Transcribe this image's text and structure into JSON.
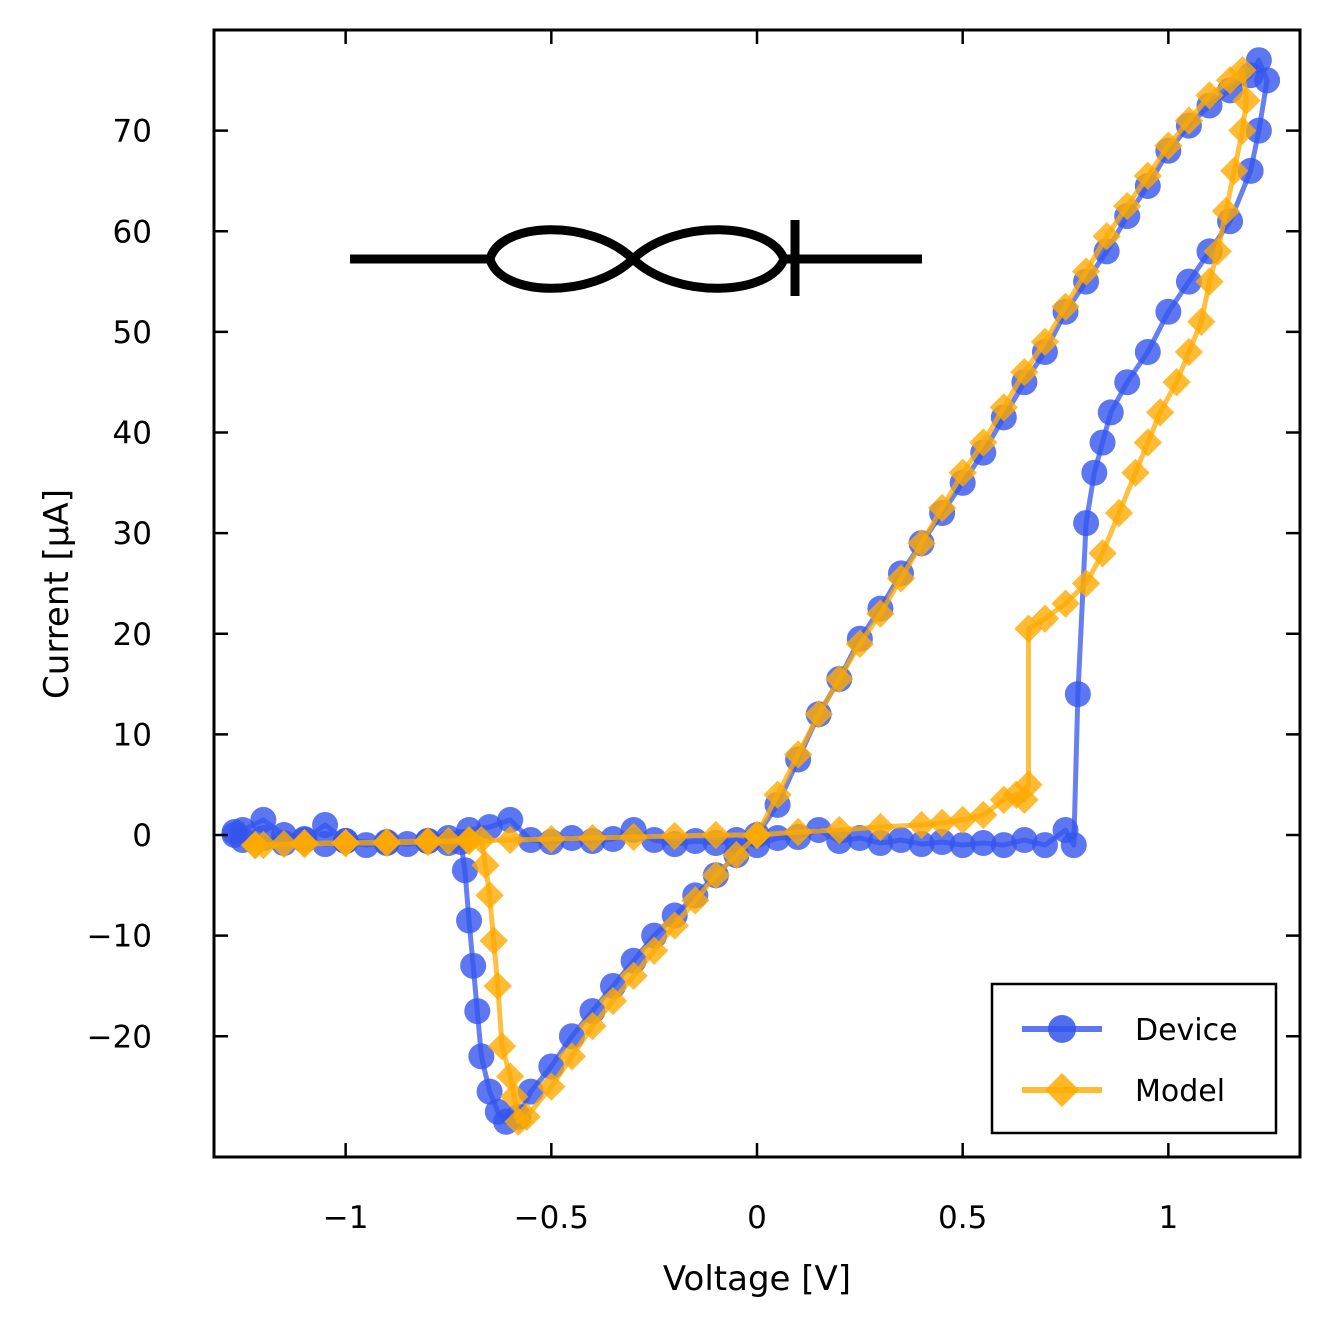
{
  "chart_data": {
    "type": "line",
    "title": "",
    "xlabel": "Voltage [V]",
    "ylabel": "Current [μA]",
    "xlim": [
      -1.32,
      1.32
    ],
    "ylim": [
      -32,
      80
    ],
    "xticks": [
      -1,
      -0.5,
      0,
      0.5,
      1
    ],
    "xtick_labels": [
      "−1",
      "−0.5",
      "0",
      "0.5",
      "1"
    ],
    "yticks": [
      -20,
      -10,
      0,
      10,
      20,
      30,
      40,
      50,
      60,
      70
    ],
    "ytick_labels": [
      "−20",
      "−10",
      "0",
      "10",
      "20",
      "30",
      "40",
      "50",
      "60",
      "70"
    ],
    "grid": false,
    "legend_position": "bottom-right",
    "inset_symbol": "memristor",
    "series": [
      {
        "name": "Device",
        "color": "#3355ee",
        "marker": "circle",
        "points": [
          [
            -1.27,
            0.0
          ],
          [
            -1.25,
            -0.5
          ],
          [
            -1.2,
            -0.3
          ],
          [
            -1.15,
            -0.8
          ],
          [
            -1.1,
            -0.4
          ],
          [
            -1.05,
            -0.9
          ],
          [
            -1.0,
            -0.6
          ],
          [
            -0.95,
            -1.0
          ],
          [
            -0.9,
            -0.7
          ],
          [
            -0.85,
            -0.9
          ],
          [
            -0.8,
            -0.6
          ],
          [
            -0.75,
            -0.8
          ],
          [
            -0.72,
            -0.7
          ],
          [
            -0.71,
            -3.5
          ],
          [
            -0.7,
            -8.5
          ],
          [
            -0.69,
            -13.0
          ],
          [
            -0.68,
            -17.5
          ],
          [
            -0.67,
            -22.0
          ],
          [
            -0.65,
            -25.5
          ],
          [
            -0.63,
            -27.5
          ],
          [
            -0.61,
            -28.5
          ],
          [
            -0.58,
            -28.0
          ],
          [
            -0.55,
            -25.5
          ],
          [
            -0.5,
            -23.0
          ],
          [
            -0.45,
            -20.0
          ],
          [
            -0.4,
            -17.5
          ],
          [
            -0.35,
            -15.0
          ],
          [
            -0.3,
            -12.5
          ],
          [
            -0.25,
            -10.0
          ],
          [
            -0.2,
            -8.0
          ],
          [
            -0.15,
            -6.0
          ],
          [
            -0.1,
            -4.0
          ],
          [
            -0.05,
            -2.0
          ],
          [
            0.0,
            0.0
          ],
          [
            0.05,
            3.0
          ],
          [
            0.1,
            7.5
          ],
          [
            0.15,
            12.0
          ],
          [
            0.2,
            15.5
          ],
          [
            0.25,
            19.5
          ],
          [
            0.3,
            22.5
          ],
          [
            0.35,
            26.0
          ],
          [
            0.4,
            29.0
          ],
          [
            0.45,
            32.0
          ],
          [
            0.5,
            35.0
          ],
          [
            0.55,
            38.0
          ],
          [
            0.6,
            41.5
          ],
          [
            0.65,
            45.0
          ],
          [
            0.7,
            48.0
          ],
          [
            0.75,
            52.0
          ],
          [
            0.8,
            55.0
          ],
          [
            0.85,
            58.0
          ],
          [
            0.9,
            61.5
          ],
          [
            0.95,
            64.5
          ],
          [
            1.0,
            68.0
          ],
          [
            1.05,
            70.5
          ],
          [
            1.1,
            72.5
          ],
          [
            1.15,
            74.0
          ],
          [
            1.2,
            75.5
          ],
          [
            1.22,
            77.0
          ],
          [
            1.24,
            75.0
          ],
          [
            1.22,
            70.0
          ],
          [
            1.2,
            66.0
          ],
          [
            1.15,
            61.0
          ],
          [
            1.1,
            58.0
          ],
          [
            1.05,
            55.0
          ],
          [
            1.0,
            52.0
          ],
          [
            0.95,
            48.0
          ],
          [
            0.9,
            45.0
          ],
          [
            0.86,
            42.0
          ],
          [
            0.84,
            39.0
          ],
          [
            0.82,
            36.0
          ],
          [
            0.8,
            31.0
          ],
          [
            0.78,
            14.0
          ],
          [
            0.77,
            -1.0
          ],
          [
            0.75,
            0.5
          ],
          [
            0.7,
            -1.0
          ],
          [
            0.65,
            -0.5
          ],
          [
            0.6,
            -1.0
          ],
          [
            0.55,
            -0.8
          ],
          [
            0.5,
            -1.0
          ],
          [
            0.45,
            -0.7
          ],
          [
            0.4,
            -0.9
          ],
          [
            0.35,
            -0.5
          ],
          [
            0.3,
            -0.8
          ],
          [
            0.25,
            -0.3
          ],
          [
            0.2,
            -0.6
          ],
          [
            0.15,
            0.5
          ],
          [
            0.1,
            -0.2
          ],
          [
            0.05,
            -0.3
          ],
          [
            0.0,
            -1.0
          ],
          [
            -0.05,
            -0.5
          ],
          [
            -0.1,
            -0.8
          ],
          [
            -0.15,
            -0.6
          ],
          [
            -0.2,
            -0.9
          ],
          [
            -0.25,
            -0.5
          ],
          [
            -0.3,
            0.5
          ],
          [
            -0.35,
            -0.4
          ],
          [
            -0.4,
            -0.6
          ],
          [
            -0.45,
            -0.3
          ],
          [
            -0.5,
            -0.7
          ],
          [
            -0.55,
            -0.5
          ],
          [
            -0.6,
            1.5
          ],
          [
            -0.65,
            0.8
          ],
          [
            -0.7,
            0.5
          ],
          [
            -0.75,
            -0.3
          ],
          [
            -0.8,
            -0.6
          ],
          [
            -0.9,
            -0.8
          ],
          [
            -1.0,
            -0.6
          ],
          [
            -1.05,
            1.0
          ],
          [
            -1.1,
            -0.5
          ],
          [
            -1.15,
            0.0
          ],
          [
            -1.2,
            1.5
          ],
          [
            -1.25,
            0.5
          ],
          [
            -1.27,
            0.3
          ]
        ]
      },
      {
        "name": "Model",
        "color": "#ffaa00",
        "marker": "diamond",
        "points": [
          [
            -1.22,
            -1.0
          ],
          [
            -1.15,
            -0.9
          ],
          [
            -1.1,
            -0.8
          ],
          [
            -1.0,
            -0.8
          ],
          [
            -0.9,
            -0.7
          ],
          [
            -0.8,
            -0.6
          ],
          [
            -0.75,
            -0.6
          ],
          [
            -0.7,
            -0.5
          ],
          [
            -0.67,
            -0.5
          ],
          [
            -0.66,
            -3.0
          ],
          [
            -0.65,
            -6.0
          ],
          [
            -0.64,
            -10.5
          ],
          [
            -0.63,
            -15.0
          ],
          [
            -0.62,
            -21.0
          ],
          [
            -0.6,
            -24.0
          ],
          [
            -0.59,
            -26.0
          ],
          [
            -0.58,
            -28.5
          ],
          [
            -0.56,
            -28.0
          ],
          [
            -0.5,
            -25.0
          ],
          [
            -0.45,
            -22.0
          ],
          [
            -0.4,
            -19.0
          ],
          [
            -0.35,
            -16.5
          ],
          [
            -0.3,
            -14.0
          ],
          [
            -0.25,
            -11.5
          ],
          [
            -0.2,
            -9.0
          ],
          [
            -0.15,
            -6.5
          ],
          [
            -0.1,
            -4.0
          ],
          [
            -0.05,
            -2.0
          ],
          [
            0.0,
            0.0
          ],
          [
            0.05,
            4.0
          ],
          [
            0.1,
            8.0
          ],
          [
            0.15,
            12.0
          ],
          [
            0.2,
            15.5
          ],
          [
            0.25,
            19.0
          ],
          [
            0.3,
            22.0
          ],
          [
            0.35,
            25.5
          ],
          [
            0.4,
            29.0
          ],
          [
            0.45,
            32.5
          ],
          [
            0.5,
            36.0
          ],
          [
            0.55,
            39.0
          ],
          [
            0.6,
            42.5
          ],
          [
            0.65,
            46.0
          ],
          [
            0.7,
            49.0
          ],
          [
            0.75,
            52.5
          ],
          [
            0.8,
            56.0
          ],
          [
            0.85,
            59.5
          ],
          [
            0.9,
            62.5
          ],
          [
            0.95,
            65.5
          ],
          [
            1.0,
            68.5
          ],
          [
            1.05,
            71.0
          ],
          [
            1.1,
            73.5
          ],
          [
            1.15,
            75.0
          ],
          [
            1.18,
            76.0
          ],
          [
            1.19,
            73.0
          ],
          [
            1.18,
            70.0
          ],
          [
            1.16,
            66.0
          ],
          [
            1.14,
            62.0
          ],
          [
            1.12,
            58.0
          ],
          [
            1.1,
            55.0
          ],
          [
            1.08,
            51.0
          ],
          [
            1.05,
            48.0
          ],
          [
            1.02,
            45.0
          ],
          [
            0.98,
            42.0
          ],
          [
            0.95,
            39.0
          ],
          [
            0.92,
            36.0
          ],
          [
            0.88,
            32.0
          ],
          [
            0.84,
            28.0
          ],
          [
            0.8,
            25.0
          ],
          [
            0.75,
            23.0
          ],
          [
            0.7,
            21.5
          ],
          [
            0.66,
            20.5
          ],
          [
            0.66,
            5.0
          ],
          [
            0.65,
            3.5
          ],
          [
            0.63,
            4.0
          ],
          [
            0.6,
            3.5
          ],
          [
            0.55,
            2.0
          ],
          [
            0.5,
            1.5
          ],
          [
            0.45,
            1.2
          ],
          [
            0.4,
            1.0
          ],
          [
            0.3,
            0.8
          ],
          [
            0.2,
            0.5
          ],
          [
            0.1,
            0.3
          ],
          [
            0.0,
            0.0
          ],
          [
            -0.1,
            0.0
          ],
          [
            -0.2,
            -0.1
          ],
          [
            -0.3,
            -0.2
          ],
          [
            -0.4,
            -0.3
          ],
          [
            -0.5,
            -0.4
          ],
          [
            -0.6,
            -0.5
          ],
          [
            -0.7,
            -0.6
          ],
          [
            -0.8,
            -0.7
          ],
          [
            -0.9,
            -0.8
          ],
          [
            -1.0,
            -0.8
          ],
          [
            -1.1,
            -0.9
          ],
          [
            -1.2,
            -1.0
          ],
          [
            -1.22,
            -1.0
          ]
        ]
      }
    ]
  }
}
